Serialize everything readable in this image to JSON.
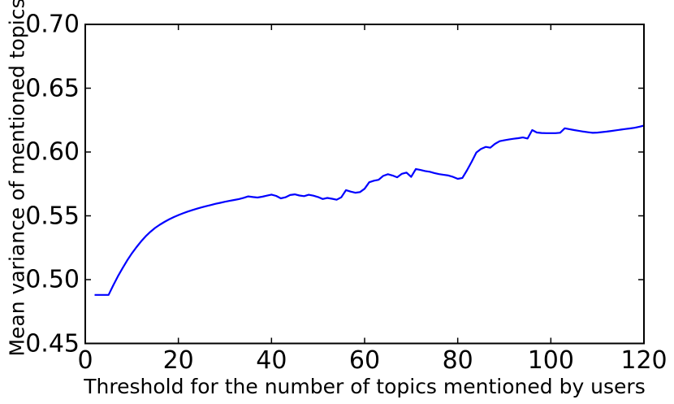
{
  "figure": {
    "xlabel": "Threshold for the number of topics mentioned by users",
    "ylabel": "Mean variance of mentioned topics"
  },
  "colors": {
    "line": "#0000ff",
    "axes": "#000000",
    "text": "#000000",
    "background": "#ffffff"
  },
  "chart_data": {
    "type": "line",
    "title": "",
    "xlabel": "Threshold for the number of topics mentioned by users",
    "ylabel": "Mean variance of mentioned topics",
    "xlim": [
      0,
      120
    ],
    "ylim": [
      0.45,
      0.7
    ],
    "grid": false,
    "legend": "none",
    "xticks": {
      "values": [
        0,
        20,
        40,
        60,
        80,
        100,
        120
      ],
      "labels": [
        "0",
        "20",
        "40",
        "60",
        "80",
        "100",
        "120"
      ]
    },
    "yticks": {
      "values": [
        0.45,
        0.5,
        0.55,
        0.6,
        0.65,
        0.7
      ],
      "labels": [
        "0.45",
        "0.50",
        "0.55",
        "0.60",
        "0.65",
        "0.70"
      ]
    },
    "series": [
      {
        "name": "mean variance of mentioned topics",
        "color": "#0000ff",
        "x": [
          2,
          3,
          4,
          5,
          6,
          7,
          8,
          9,
          10,
          11,
          12,
          13,
          14,
          15,
          16,
          17,
          18,
          19,
          20,
          21,
          22,
          23,
          24,
          25,
          26,
          27,
          28,
          29,
          30,
          31,
          32,
          33,
          34,
          35,
          36,
          37,
          38,
          39,
          40,
          41,
          42,
          43,
          44,
          45,
          46,
          47,
          48,
          49,
          50,
          51,
          52,
          53,
          54,
          55,
          56,
          57,
          58,
          59,
          60,
          61,
          62,
          63,
          64,
          65,
          66,
          67,
          68,
          69,
          70,
          71,
          72,
          73,
          74,
          75,
          76,
          77,
          78,
          79,
          80,
          81,
          82,
          83,
          84,
          85,
          86,
          87,
          88,
          89,
          90,
          91,
          92,
          93,
          94,
          95,
          96,
          97,
          98,
          99,
          100,
          101,
          102,
          103,
          104,
          105,
          106,
          107,
          108,
          109,
          110,
          111,
          112,
          113,
          114,
          115,
          116,
          117,
          118,
          119,
          120
        ],
        "y": [
          0.488,
          0.488,
          0.488,
          0.488,
          0.4955,
          0.5025,
          0.509,
          0.515,
          0.5205,
          0.5255,
          0.53,
          0.534,
          0.5375,
          0.5405,
          0.543,
          0.5452,
          0.5472,
          0.549,
          0.5506,
          0.552,
          0.5533,
          0.5545,
          0.5556,
          0.5566,
          0.5576,
          0.5585,
          0.5594,
          0.5602,
          0.561,
          0.5617,
          0.5624,
          0.5631,
          0.5641,
          0.5652,
          0.5647,
          0.5643,
          0.565,
          0.5658,
          0.5666,
          0.5656,
          0.5637,
          0.5645,
          0.5663,
          0.5668,
          0.5659,
          0.5654,
          0.5665,
          0.5658,
          0.5647,
          0.5632,
          0.564,
          0.5634,
          0.5626,
          0.5645,
          0.5701,
          0.569,
          0.5681,
          0.5686,
          0.5712,
          0.5763,
          0.5775,
          0.5782,
          0.5813,
          0.5826,
          0.5816,
          0.5802,
          0.5829,
          0.5839,
          0.5805,
          0.5867,
          0.5859,
          0.5851,
          0.5845,
          0.5835,
          0.5827,
          0.5821,
          0.5816,
          0.5805,
          0.579,
          0.5797,
          0.5857,
          0.5924,
          0.5996,
          0.6024,
          0.604,
          0.6034,
          0.6064,
          0.6085,
          0.6092,
          0.6098,
          0.6104,
          0.6108,
          0.6114,
          0.6106,
          0.6172,
          0.6153,
          0.6149,
          0.6148,
          0.6148,
          0.6148,
          0.6151,
          0.6186,
          0.6179,
          0.6172,
          0.6166,
          0.616,
          0.6155,
          0.615,
          0.6152,
          0.6156,
          0.616,
          0.6165,
          0.617,
          0.6175,
          0.618,
          0.6185,
          0.619,
          0.6198,
          0.6207
        ]
      }
    ]
  }
}
